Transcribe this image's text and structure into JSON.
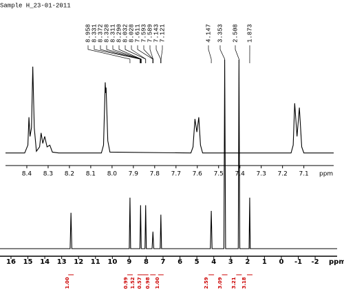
{
  "header": {
    "title": "Sample H_23-01-2011"
  },
  "peak_picks": [
    {
      "value": 8.958,
      "label": "8.958"
    },
    {
      "value": 8.331,
      "label": "8.331"
    },
    {
      "value": 8.372,
      "label": "8.372"
    },
    {
      "value": 8.328,
      "label": "8.328"
    },
    {
      "value": 8.311,
      "label": "8.311"
    },
    {
      "value": 8.29,
      "label": "8.290"
    },
    {
      "value": 8.032,
      "label": "8.032"
    },
    {
      "value": 8.028,
      "label": "8.028"
    },
    {
      "value": 7.611,
      "label": "7.611"
    },
    {
      "value": 7.593,
      "label": "7.593"
    },
    {
      "value": 7.589,
      "label": "7.589"
    },
    {
      "value": 7.143,
      "label": "7.143"
    },
    {
      "value": 7.121,
      "label": "7.121"
    },
    {
      "value": 4.147,
      "label": "4.147"
    },
    {
      "value": 3.353,
      "label": "3.353"
    },
    {
      "value": 2.508,
      "label": "2.508"
    },
    {
      "value": 1.873,
      "label": "1.873"
    }
  ],
  "integrals": [
    {
      "ppm": 12.45,
      "value": 1.0,
      "label": "1.00"
    },
    {
      "ppm": 8.958,
      "value": 0.99,
      "label": "0.99"
    },
    {
      "ppm": 8.35,
      "value": 1.52,
      "label": "1.52"
    },
    {
      "ppm": 8.03,
      "value": 0.57,
      "label": "0.57"
    },
    {
      "ppm": 7.6,
      "value": 0.98,
      "label": "0.98"
    },
    {
      "ppm": 7.13,
      "value": 1.0,
      "label": "1.00"
    },
    {
      "ppm": 4.147,
      "value": 2.59,
      "label": "2.59"
    },
    {
      "ppm": 3.353,
      "value": 3.09,
      "label": "3.09"
    },
    {
      "ppm": 2.508,
      "value": 3.21,
      "label": "3.21"
    },
    {
      "ppm": 1.873,
      "value": 3.18,
      "label": "3.18"
    }
  ],
  "chart_data": [
    {
      "type": "line",
      "x_label": "ppm",
      "color": "#000",
      "xlim": [
        8.5,
        6.96
      ],
      "ylim": [
        0,
        100
      ],
      "xticks": [
        8.4,
        8.3,
        8.2,
        8.1,
        {
          "value": 8,
          "label": "8.0"
        },
        7.9,
        7.8,
        7.7,
        7.6,
        7.5,
        7.4,
        7.3,
        7.2,
        7.1
      ],
      "x": [
        8.5,
        8.41,
        8.395,
        8.39,
        8.385,
        8.378,
        8.372,
        8.365,
        8.355,
        8.34,
        8.333,
        8.325,
        8.316,
        8.305,
        8.292,
        8.28,
        8.25,
        8.05,
        8.04,
        8.032,
        8.03,
        8.028,
        8.02,
        8.01,
        7.63,
        7.62,
        7.611,
        7.602,
        7.593,
        7.585,
        7.575,
        7.16,
        7.15,
        7.143,
        7.132,
        7.121,
        7.11,
        7.1,
        6.96
      ],
      "values": [
        1,
        1,
        10,
        42,
        20,
        30,
        100,
        30,
        3,
        8,
        24,
        12,
        20,
        8,
        10,
        2,
        1,
        1,
        10,
        82,
        70,
        76,
        15,
        2,
        1,
        8,
        40,
        25,
        42,
        10,
        1,
        1,
        10,
        58,
        20,
        53,
        8,
        1,
        1
      ]
    },
    {
      "type": "line",
      "x_label": "ppm",
      "color": "#000",
      "xlim": [
        16.65,
        -3.3
      ],
      "ylim": [
        0,
        100
      ],
      "xticks": [
        16,
        15,
        14,
        13,
        12,
        11,
        10,
        9,
        8,
        7,
        6,
        5,
        4,
        3,
        2,
        1,
        0,
        -1,
        -2
      ],
      "x": [
        16.65,
        12.5,
        12.45,
        12.4,
        9.0,
        8.958,
        8.92,
        8.37,
        8.33,
        8.29,
        8.07,
        8.03,
        7.99,
        7.65,
        7.6,
        7.55,
        7.17,
        7.13,
        7.09,
        4.2,
        4.147,
        4.1,
        3.4,
        3.353,
        3.3,
        2.55,
        2.508,
        2.46,
        1.91,
        1.873,
        1.84,
        -3.3
      ],
      "values": [
        0,
        0,
        19,
        0,
        0,
        27,
        0,
        0,
        23,
        0,
        0,
        23,
        0,
        0,
        9,
        0,
        0,
        18,
        0,
        0,
        20,
        0,
        0,
        100,
        0,
        0,
        100,
        0,
        0,
        27,
        0,
        0
      ]
    }
  ]
}
